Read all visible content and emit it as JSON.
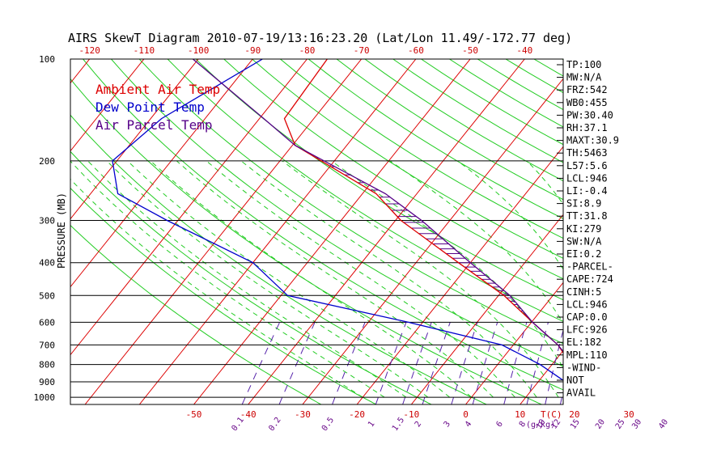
{
  "chart_data": {
    "type": "skewt",
    "title": "AIRS SkewT Diagram 2010-07-19/13:16:23.20 (Lat/Lon 11.49/-172.77 deg)",
    "ylabel": "PRESSURE (MB)",
    "top_temp_ticks": [
      "-120",
      "-110",
      "-100",
      "-90",
      "-80",
      "-70",
      "-60",
      "-50",
      "-40"
    ],
    "bottom_temp_ticks": [
      "-50",
      "-40",
      "-30",
      "-20",
      "-10",
      "0",
      "10",
      "20",
      "30"
    ],
    "bottom_temp_unit": "T(C)",
    "mixing_ratio_ticks": [
      "0.1",
      "0.2",
      "0.5",
      "1",
      "1.5",
      "2",
      "3",
      "4",
      "6",
      "8",
      "10",
      "12",
      "15",
      "20",
      "25",
      "30",
      "40"
    ],
    "mixing_ratio_unit": "(g/kg)",
    "pressure_ticks": [
      "100",
      "200",
      "300",
      "400",
      "500",
      "600",
      "700",
      "800",
      "900",
      "1000"
    ],
    "legend": [
      {
        "label": "Ambient Air Temp",
        "color": "#dd0000"
      },
      {
        "label": "Dew Point Temp",
        "color": "#0000cc"
      },
      {
        "label": "Air Parcel Temp",
        "color": "#550088"
      }
    ],
    "series": [
      {
        "name": "Ambient Air Temp",
        "points": [
          [
            100,
            -76.3
          ],
          [
            150,
            -75.4
          ],
          [
            180,
            -69.5
          ],
          [
            250,
            -47.5
          ],
          [
            300,
            -39.0
          ],
          [
            400,
            -22.2
          ],
          [
            500,
            -9.0
          ],
          [
            600,
            0.2
          ],
          [
            700,
            8.2
          ],
          [
            800,
            13.5
          ],
          [
            900,
            18.4
          ],
          [
            1000,
            25.7
          ]
        ]
      },
      {
        "name": "Dew Point Temp",
        "points": [
          [
            100,
            -88.2
          ],
          [
            150,
            -98.0
          ],
          [
            200,
            -100.8
          ],
          [
            250,
            -95.0
          ],
          [
            300,
            -82.0
          ],
          [
            400,
            -60.0
          ],
          [
            500,
            -48.8
          ],
          [
            600,
            -22.6
          ],
          [
            700,
            -2.1
          ],
          [
            800,
            7.8
          ],
          [
            900,
            15.0
          ],
          [
            1000,
            23.2
          ]
        ]
      },
      {
        "name": "Air Parcel Temp",
        "points": [
          [
            100,
            -101.0
          ],
          [
            150,
            -79.2
          ],
          [
            180,
            -69.5
          ],
          [
            250,
            -45.8
          ],
          [
            300,
            -35.2
          ],
          [
            400,
            -20.0
          ],
          [
            500,
            -7.9
          ],
          [
            600,
            0.2
          ],
          [
            700,
            8.2
          ],
          [
            800,
            14.0
          ],
          [
            900,
            19.0
          ],
          [
            946,
            21.3
          ],
          [
            1000,
            31.0
          ]
        ]
      }
    ],
    "indices": [
      "TP:100",
      "MW:N/A",
      "FRZ:542",
      "WB0:455",
      "PW:30.40",
      "RH:37.1",
      "MAXT:30.9",
      "TH:5463",
      "L57:5.6",
      "LCL:946",
      "LI:-0.4",
      "SI:8.9",
      "TT:31.8",
      "KI:279",
      "SW:N/A",
      "EI:0.2",
      "-PARCEL-",
      "CAPE:724",
      "CINH:5",
      "LCL:946",
      "CAP:0.0",
      "LFC:926",
      "EL:182",
      "MPL:110",
      "-WIND-",
      "NOT",
      "AVAIL"
    ]
  },
  "colors": {
    "isotherm": "#dd0000",
    "dry_adiabat": "#22cc22",
    "moist_adiabat": "#22cc22",
    "mixing_ratio": "#5522aa",
    "isobar": "#000000",
    "temp": "#dd0000",
    "dewpoint": "#0000cc",
    "parcel": "#550088",
    "cape_hatch": "#550088"
  }
}
